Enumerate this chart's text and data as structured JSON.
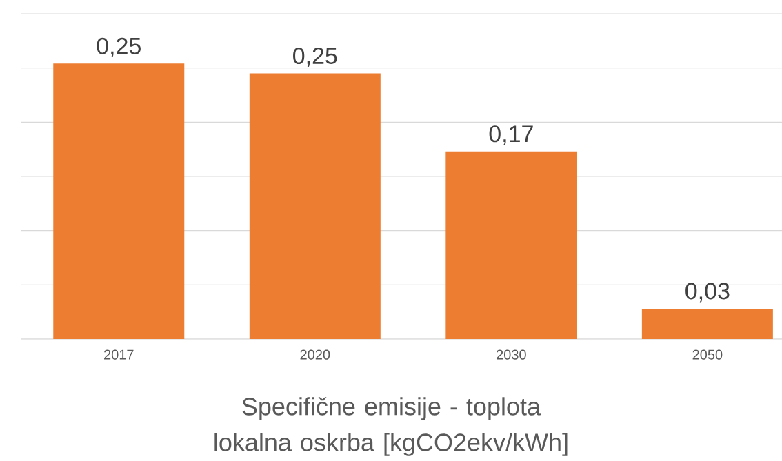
{
  "chart_data": {
    "type": "bar",
    "title": "Specifične emisije - toplota lokalna oskrba [kgCO2ekv/kWh]",
    "categories": [
      "2017",
      "2020",
      "2030",
      "2050"
    ],
    "values": [
      0.254,
      0.245,
      0.173,
      0.028
    ],
    "value_labels": [
      "0,25",
      "0,25",
      "0,17",
      "0,03"
    ],
    "color": "#ed7d31",
    "ylim": [
      0,
      0.3
    ],
    "yticks": [
      {
        "value": 0,
        "label": null
      },
      {
        "value": 0.05,
        "label": null
      },
      {
        "value": 0.1,
        "label": null
      },
      {
        "value": 0.15,
        "label": null
      },
      {
        "value": 0.2,
        "label": null
      },
      {
        "value": 0.25,
        "label": null
      },
      {
        "value": 0.3,
        "label": null
      }
    ],
    "grid": "y",
    "tick_labels": "x"
  }
}
